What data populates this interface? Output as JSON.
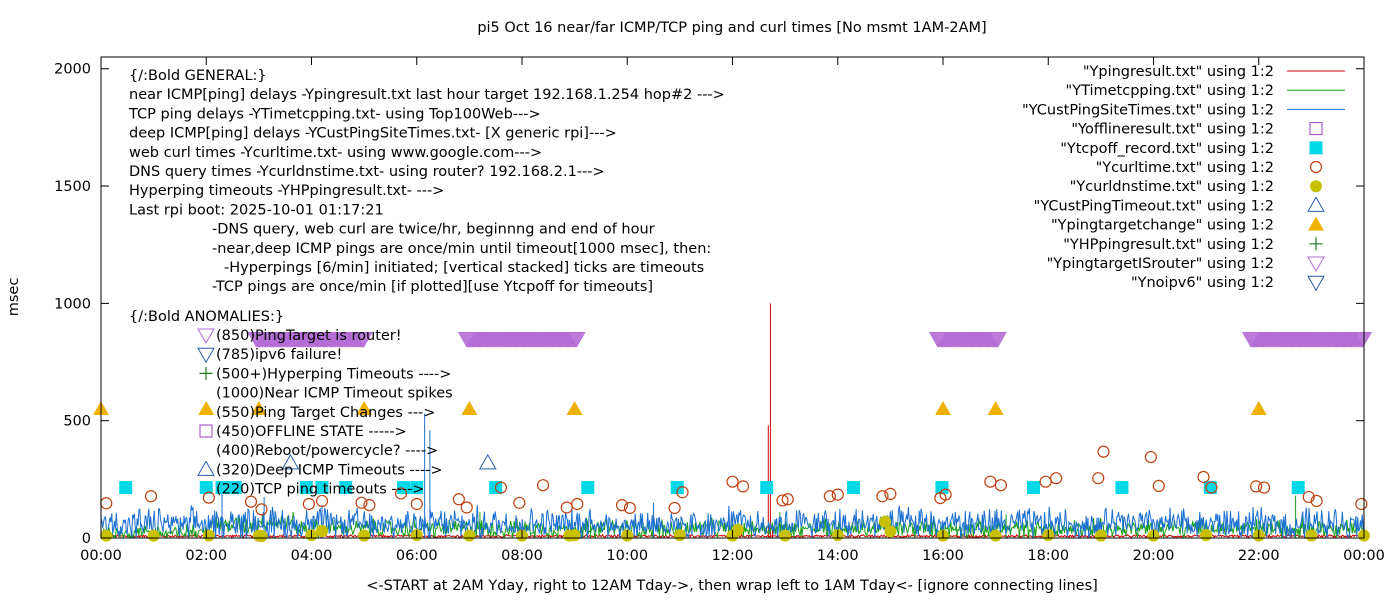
{
  "chart_data": {
    "type": "scatter",
    "title": "pi5 Oct 16  near/far ICMP/TCP ping and curl times [No msmt 1AM-2AM]",
    "xlabel": "<-START at 2AM Yday, right to 12AM Tday->, then wrap left to 1AM Tday<- [ignore connecting lines]",
    "ylabel": "msec",
    "xlim": [
      0,
      24
    ],
    "ylim": [
      0,
      2050
    ],
    "x_ticks": [
      0,
      2,
      4,
      6,
      8,
      10,
      12,
      14,
      16,
      18,
      20,
      22,
      24
    ],
    "x_tick_labels": [
      "00:00",
      "02:00",
      "04:00",
      "06:00",
      "08:00",
      "10:00",
      "12:00",
      "14:00",
      "16:00",
      "18:00",
      "20:00",
      "22:00",
      "00:00"
    ],
    "y_ticks": [
      0,
      500,
      1000,
      1500,
      2000
    ],
    "y_tick_labels": [
      "0",
      "500",
      "1000",
      "1500",
      "2000"
    ],
    "grid": false,
    "legend_position": "top-right",
    "annotation_lines": [
      {
        "text": "{/:Bold GENERAL:}",
        "indent": 0
      },
      {
        "text": "near ICMP[ping] delays -Ypingresult.txt last hour target 192.168.1.254 hop#2 --->",
        "indent": 0
      },
      {
        "text": "TCP ping delays -YTimetcpping.txt- using Top100Web--->",
        "indent": 0
      },
      {
        "text": "deep ICMP[ping] delays -YCustPingSiteTimes.txt- [X generic rpi]--->",
        "indent": 0
      },
      {
        "text": "web curl times -Ycurltime.txt- using www.google.com--->",
        "indent": 0
      },
      {
        "text": "DNS query times -Ycurldnstime.txt- using router? 192.168.2.1--->",
        "indent": 0
      },
      {
        "text": "Hyperping timeouts -YHPpingresult.txt- --->",
        "indent": 0
      },
      {
        "text": "Last rpi boot: 2025-10-01 01:17:21",
        "indent": 0
      },
      {
        "text": "-DNS query, web curl are twice/hr, beginnng and end of hour",
        "indent": 1
      },
      {
        "text": "-near,deep ICMP pings are once/min until timeout[1000 msec], then:",
        "indent": 1
      },
      {
        "text": "-Hyperpings [6/min] initiated; [vertical stacked] ticks are timeouts",
        "indent": 2
      },
      {
        "text": "-TCP pings are once/min [if plotted][use Ytcpoff for timeouts]",
        "indent": 1
      }
    ],
    "anomaly_heading": "{/:Bold ANOMALIES:}",
    "anomaly_lines": [
      {
        "text": "(850)PingTarget is router!",
        "marker": "tri-down-open",
        "color": "#b46cd6"
      },
      {
        "text": "(785)ipv6 failure!",
        "marker": "tri-down-open",
        "color": "#2a5fb0"
      },
      {
        "text": "(500+)Hyperping Timeouts ---->",
        "marker": "plus",
        "color": "#1e7a1e"
      },
      {
        "text": "(1000)Near ICMP Timeout spikes",
        "marker": "",
        "color": "#cc0000"
      },
      {
        "text": "(550)Ping Target Changes --->",
        "marker": "",
        "color": "#f0b000"
      },
      {
        "text": "(450)OFFLINE STATE ----->",
        "marker": "square-open",
        "color": "#a040c0"
      },
      {
        "text": "(400)Reboot/powercycle? ---->",
        "marker": "",
        "color": "#000000"
      },
      {
        "text": "(320)Deep ICMP Timeouts ---->",
        "marker": "tri-up-open",
        "color": "#2a5fb0"
      },
      {
        "text": "(220)TCP ping timeouts ---->",
        "marker": "",
        "color": "#00cccc"
      }
    ],
    "series": [
      {
        "name": "\"Ypingresult.txt\" using 1:2",
        "style": "line",
        "color": "#cc0000",
        "base": 8,
        "noise": 5,
        "spikes": [
          [
            12.72,
            1000
          ],
          [
            12.68,
            480
          ],
          [
            12.76,
            40
          ]
        ]
      },
      {
        "name": "\"YTimetcpping.txt\" using 1:2",
        "style": "line",
        "color": "#18a018",
        "base": 40,
        "noise": 35,
        "steps": [
          [
            0,
            2,
            20
          ],
          [
            2,
            2.9,
            55
          ],
          [
            2.9,
            3.7,
            70
          ],
          [
            3.7,
            24,
            40
          ]
        ],
        "spikes": [
          [
            7.2,
            110
          ],
          [
            9.3,
            100
          ],
          [
            12.9,
            110
          ],
          [
            17.2,
            100
          ],
          [
            22.7,
            180
          ]
        ]
      },
      {
        "name": "\"YCustPingSiteTimes.txt\" using 1:2",
        "style": "line",
        "color": "#1a6fd0",
        "base": 60,
        "noise": 60,
        "spikes": [
          [
            2.3,
            190
          ],
          [
            3.1,
            175
          ],
          [
            6.15,
            530
          ],
          [
            6.25,
            460
          ],
          [
            4.2,
            140
          ],
          [
            10.5,
            150
          ]
        ]
      },
      {
        "name": "\"Yofflineresult.txt\" using 1:2",
        "style": "square-open",
        "color": "#a040c0",
        "points": []
      },
      {
        "name": "\"Ytcpoff_record.txt\" using 1:2",
        "style": "square-filled",
        "color": "#00d8e8",
        "points": [
          [
            0.47,
            215
          ],
          [
            2.0,
            215
          ],
          [
            2.3,
            215
          ],
          [
            2.55,
            215
          ],
          [
            3.9,
            215
          ],
          [
            4.2,
            215
          ],
          [
            4.65,
            215
          ],
          [
            5.75,
            215
          ],
          [
            6.0,
            215
          ],
          [
            7.5,
            215
          ],
          [
            9.25,
            215
          ],
          [
            10.95,
            215
          ],
          [
            12.65,
            215
          ],
          [
            14.3,
            215
          ],
          [
            15.98,
            215
          ],
          [
            17.72,
            215
          ],
          [
            19.4,
            215
          ],
          [
            21.08,
            215
          ],
          [
            22.75,
            215
          ]
        ]
      },
      {
        "name": "\"Ycurltime.txt\" using 1:2",
        "style": "circle-open",
        "color": "#c04010",
        "points": [
          [
            0.1,
            148
          ],
          [
            0.95,
            178
          ],
          [
            2.05,
            172
          ],
          [
            2.85,
            155
          ],
          [
            3.05,
            122
          ],
          [
            3.95,
            145
          ],
          [
            4.2,
            158
          ],
          [
            4.95,
            150
          ],
          [
            5.1,
            140
          ],
          [
            5.7,
            190
          ],
          [
            6.0,
            145
          ],
          [
            6.8,
            165
          ],
          [
            6.95,
            130
          ],
          [
            7.6,
            215
          ],
          [
            7.95,
            150
          ],
          [
            8.4,
            225
          ],
          [
            8.85,
            130
          ],
          [
            9.05,
            145
          ],
          [
            9.9,
            140
          ],
          [
            10.05,
            128
          ],
          [
            10.9,
            128
          ],
          [
            11.05,
            195
          ],
          [
            12.0,
            240
          ],
          [
            12.2,
            220
          ],
          [
            12.95,
            160
          ],
          [
            13.05,
            165
          ],
          [
            13.85,
            178
          ],
          [
            14.0,
            185
          ],
          [
            14.85,
            178
          ],
          [
            15.0,
            188
          ],
          [
            15.95,
            170
          ],
          [
            16.05,
            185
          ],
          [
            16.9,
            240
          ],
          [
            17.1,
            225
          ],
          [
            17.95,
            240
          ],
          [
            18.15,
            255
          ],
          [
            18.95,
            255
          ],
          [
            19.05,
            368
          ],
          [
            19.95,
            345
          ],
          [
            20.1,
            222
          ],
          [
            20.95,
            260
          ],
          [
            21.1,
            215
          ],
          [
            21.95,
            220
          ],
          [
            22.1,
            215
          ],
          [
            22.95,
            175
          ],
          [
            23.1,
            158
          ],
          [
            23.95,
            145
          ]
        ]
      },
      {
        "name": "\"Ycurldnstime.txt\" using 1:2",
        "style": "circle-filled",
        "color": "#c8c000",
        "points": [
          [
            0.1,
            10
          ],
          [
            1.0,
            10
          ],
          [
            2.05,
            10
          ],
          [
            3.0,
            10
          ],
          [
            3.05,
            8
          ],
          [
            4.0,
            12
          ],
          [
            4.2,
            30
          ],
          [
            5.0,
            10
          ],
          [
            6.0,
            12
          ],
          [
            7.0,
            10
          ],
          [
            8.0,
            10
          ],
          [
            8.9,
            10
          ],
          [
            9.0,
            12
          ],
          [
            10.0,
            10
          ],
          [
            11.0,
            12
          ],
          [
            12.0,
            10
          ],
          [
            12.1,
            35
          ],
          [
            13.0,
            10
          ],
          [
            14.0,
            12
          ],
          [
            14.9,
            70
          ],
          [
            15.0,
            28
          ],
          [
            16.0,
            10
          ],
          [
            17.0,
            10
          ],
          [
            18.0,
            12
          ],
          [
            19.0,
            10
          ],
          [
            20.0,
            10
          ],
          [
            21.0,
            12
          ],
          [
            22.0,
            10
          ],
          [
            23.0,
            10
          ],
          [
            24.0,
            10
          ]
        ]
      },
      {
        "name": "\"YCustPingTimeout.txt\" using 1:2",
        "style": "tri-up-open",
        "color": "#2a5fb0",
        "points": [
          [
            3.6,
            320
          ],
          [
            7.35,
            320
          ]
        ]
      },
      {
        "name": "\"Ypingtargetchange\" using 1:2",
        "style": "tri-up-filled",
        "color": "#f0b000",
        "points": [
          [
            0.0,
            550
          ],
          [
            2.0,
            550
          ],
          [
            3.0,
            550
          ],
          [
            5.0,
            550
          ],
          [
            7.0,
            550
          ],
          [
            9.0,
            550
          ],
          [
            16.0,
            550
          ],
          [
            17.0,
            550
          ],
          [
            22.0,
            550
          ]
        ]
      },
      {
        "name": "\"YHPpingresult.txt\" using 1:2",
        "style": "plus",
        "color": "#1e7a1e",
        "points": []
      },
      {
        "name": "\"YpingtargetISrouter\" using 1:2",
        "style": "tri-down-open",
        "color": "#b46cd6",
        "ranges": [
          [
            2.95,
            5.0,
            850
          ],
          [
            6.95,
            9.05,
            850
          ],
          [
            15.9,
            17.05,
            850
          ],
          [
            21.85,
            24.0,
            850
          ]
        ]
      },
      {
        "name": "\"Ynoipv6\" using 1:2",
        "style": "tri-down-open",
        "color": "#2a5fb0",
        "points": []
      }
    ]
  }
}
